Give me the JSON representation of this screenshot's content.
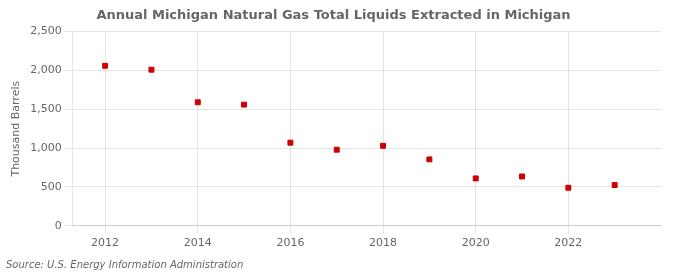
{
  "chart_data": {
    "type": "scatter",
    "title": "Annual Michigan Natural Gas Total Liquids Extracted in Michigan",
    "ylabel": "Thousand Barrels",
    "source": "Source: U.S. Energy Information Administration",
    "x": [
      2012,
      2013,
      2014,
      2015,
      2016,
      2017,
      2018,
      2019,
      2020,
      2021,
      2022,
      2023
    ],
    "values": [
      2060,
      2010,
      1590,
      1560,
      1070,
      980,
      1030,
      855,
      610,
      635,
      490,
      525
    ],
    "color": "#cc0000",
    "marker": "square",
    "xlim": [
      2011.3,
      2024.0
    ],
    "xticks": [
      2012,
      2014,
      2016,
      2018,
      2020,
      2022
    ],
    "ylim": [
      0,
      2500
    ],
    "yticks": [
      0,
      500,
      {
        "value": 1000,
        "label": "1,000"
      },
      {
        "value": 1500,
        "label": "1,500"
      },
      {
        "value": 2000,
        "label": "2,000"
      },
      {
        "value": 2500,
        "label": "2,500"
      }
    ],
    "grid": true
  }
}
